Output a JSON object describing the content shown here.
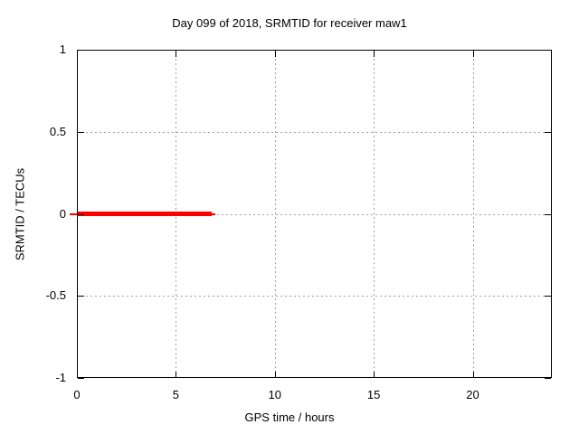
{
  "chart_data": {
    "type": "line",
    "title": "Day 099 of 2018, SRMTID for receiver maw1",
    "xlabel": "GPS time / hours",
    "ylabel": "SRMTID / TECUs",
    "xlim": [
      0,
      24
    ],
    "ylim": [
      -1,
      1
    ],
    "xticks": [
      0,
      5,
      10,
      15,
      20
    ],
    "yticks": [
      1,
      0.5,
      0,
      -0.5,
      -1
    ],
    "xtick_labels": [
      "0",
      "5",
      "10",
      "15",
      "20"
    ],
    "ytick_labels": [
      "1",
      "0.5",
      "0",
      "-0.5",
      "-1"
    ],
    "grid": true,
    "grid_style": "dotted",
    "legend": "none",
    "series": [
      {
        "name": "SRMTID",
        "color": "#ff0000",
        "description": "constant value 0 TECUs from 0 to about 6.8 GPS hours, no data afterwards",
        "y_value": 0,
        "x_start": 0,
        "x_end": 6.8,
        "segments": [
          {
            "x0": -0.35,
            "x1": 7.0,
            "y": 0,
            "thickness_px": 2
          },
          {
            "x0": 0.0,
            "x1": 6.8,
            "y": 0,
            "thickness_px": 5
          }
        ]
      }
    ],
    "colors": {
      "series": "#ff0000",
      "grid": "#a0a0a0",
      "border": "#000000",
      "background": "#ffffff",
      "text": "#000000"
    }
  }
}
